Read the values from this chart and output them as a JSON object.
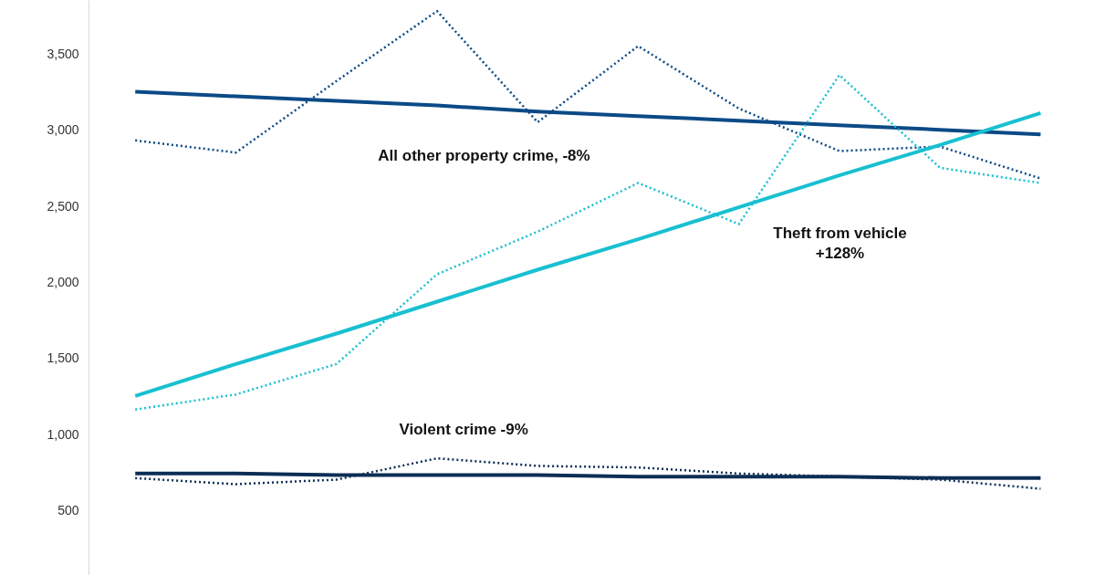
{
  "chart_data": {
    "type": "line",
    "ylim": [
      70,
      3850
    ],
    "categories": [
      null,
      null,
      null,
      null,
      null,
      null,
      null,
      null,
      null,
      null
    ],
    "yticks": [
      {
        "value": 500,
        "label": "500"
      },
      {
        "value": 1000,
        "label": "1,000"
      },
      {
        "value": 1500,
        "label": "1,500"
      },
      {
        "value": 2000,
        "label": "2,000"
      },
      {
        "value": 2500,
        "label": "2,500"
      },
      {
        "value": 3000,
        "label": "3,000"
      },
      {
        "value": 3500,
        "label": "3,500"
      }
    ],
    "tick_labels": "y",
    "marker": "none",
    "series": [
      {
        "color": "#0b4a86",
        "line_style": "dotted",
        "values": [
          2930,
          2850,
          3320,
          3780,
          3050,
          3550,
          3140,
          2860,
          2890,
          2680
        ]
      },
      {
        "color": "#0b4a86",
        "line_style": "solid",
        "values": [
          3250,
          3220,
          3190,
          3160,
          3120,
          3090,
          3060,
          3030,
          3000,
          2970
        ]
      },
      {
        "color": "#18c0d0",
        "line_style": "dotted",
        "values": [
          1160,
          1260,
          1460,
          2050,
          2330,
          2650,
          2380,
          3360,
          2750,
          2650
        ]
      },
      {
        "color": "#18c0d0",
        "line_style": "solid",
        "values": [
          1250,
          1460,
          1660,
          1870,
          2080,
          2280,
          2490,
          2700,
          2900,
          3110
        ]
      },
      {
        "color": "#0c2e55",
        "line_style": "dotted",
        "values": [
          710,
          670,
          700,
          840,
          790,
          780,
          740,
          720,
          700,
          640
        ]
      },
      {
        "color": "#0c2e55",
        "line_style": "solid",
        "values": [
          740,
          740,
          730,
          730,
          730,
          720,
          720,
          720,
          710,
          710
        ]
      }
    ],
    "annotations": [
      "All other property crime, -8%",
      "Theft from vehicle\n+128%",
      "Violent crime  -9%"
    ]
  }
}
